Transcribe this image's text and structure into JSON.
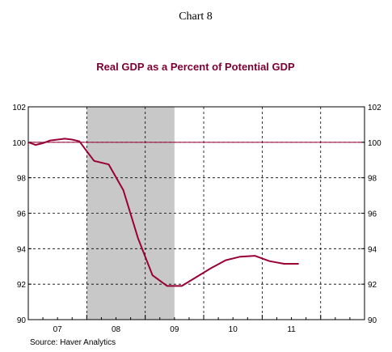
{
  "chart_data": {
    "type": "line",
    "header": "Chart 8",
    "title": "Real GDP as a Percent of Potential GDP",
    "source": "Source: Haver Analytics",
    "ylim": [
      90,
      102
    ],
    "y_ticks": [
      {
        "value": 90,
        "label": "90"
      },
      {
        "value": 92,
        "label": "92"
      },
      {
        "value": 94,
        "label": "94"
      },
      {
        "value": 96,
        "label": "96"
      },
      {
        "value": 98,
        "label": "98"
      },
      {
        "value": 100,
        "label": "100"
      },
      {
        "value": 102,
        "label": "102"
      }
    ],
    "x_range": [
      2006.0,
      2011.75
    ],
    "year_boundaries": [
      2007,
      2008,
      2009,
      2010,
      2011
    ],
    "x_labels": [
      {
        "x": 2006.5,
        "label": "07"
      },
      {
        "x": 2007.5,
        "label": "08"
      },
      {
        "x": 2008.5,
        "label": "09"
      },
      {
        "x": 2009.5,
        "label": "10"
      },
      {
        "x": 2010.5,
        "label": "11"
      }
    ],
    "recession": {
      "start": 2007.0,
      "end": 2008.5
    },
    "reference_line": {
      "y": 100
    },
    "grid": true,
    "series": [
      {
        "color": "#990033",
        "points": [
          {
            "x": 2006.0,
            "y": 100.0
          },
          {
            "x": 2006.125,
            "y": 99.85
          },
          {
            "x": 2006.25,
            "y": 99.95
          },
          {
            "x": 2006.375,
            "y": 100.1
          },
          {
            "x": 2006.5,
            "y": 100.15
          },
          {
            "x": 2006.625,
            "y": 100.2
          },
          {
            "x": 2006.75,
            "y": 100.15
          },
          {
            "x": 2006.875,
            "y": 100.05
          },
          {
            "x": 2007.0,
            "y": 99.5
          },
          {
            "x": 2007.125,
            "y": 98.95
          },
          {
            "x": 2007.375,
            "y": 98.75
          },
          {
            "x": 2007.625,
            "y": 97.3
          },
          {
            "x": 2007.875,
            "y": 94.6
          },
          {
            "x": 2008.125,
            "y": 92.5
          },
          {
            "x": 2008.375,
            "y": 91.9
          },
          {
            "x": 2008.625,
            "y": 91.9
          },
          {
            "x": 2008.875,
            "y": 92.4
          },
          {
            "x": 2009.125,
            "y": 92.9
          },
          {
            "x": 2009.375,
            "y": 93.35
          },
          {
            "x": 2009.625,
            "y": 93.55
          },
          {
            "x": 2009.875,
            "y": 93.6
          },
          {
            "x": 2010.125,
            "y": 93.3
          },
          {
            "x": 2010.375,
            "y": 93.15
          },
          {
            "x": 2010.625,
            "y": 93.15
          }
        ]
      }
    ]
  }
}
